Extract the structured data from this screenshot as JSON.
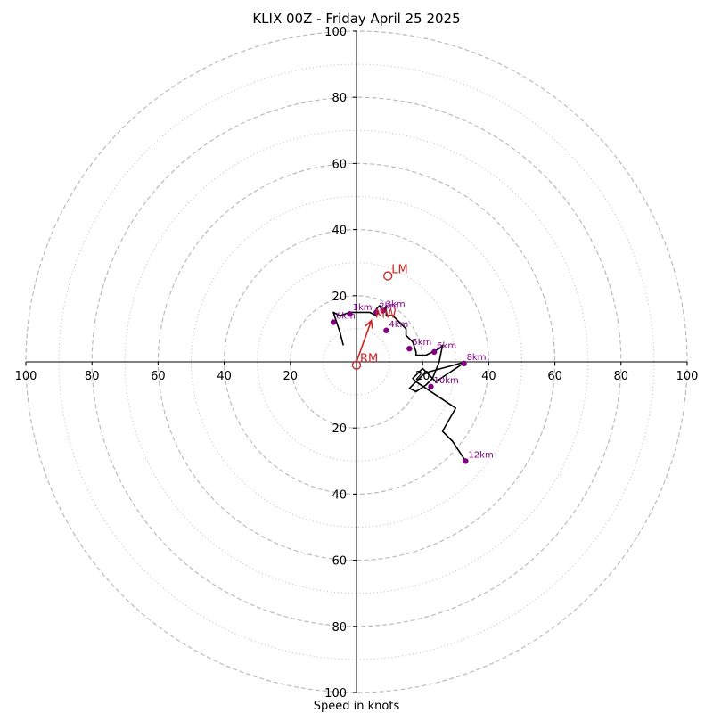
{
  "chart_data": {
    "type": "scatter",
    "title": "KLIX 00Z - Friday April 25 2025",
    "xlabel": "Speed in knots",
    "ylabel": "",
    "xlim": [
      -100,
      100
    ],
    "ylim": [
      -100,
      100
    ],
    "grid": true,
    "rings_major": [
      20,
      40,
      60,
      80,
      100
    ],
    "rings_minor": [
      10,
      30,
      50,
      70,
      90
    ],
    "x_tick_labels": [
      "100",
      "80",
      "60",
      "40",
      "20",
      "20",
      "40",
      "60",
      "80",
      "100"
    ],
    "x_tick_values": [
      -100,
      -80,
      -60,
      -40,
      -20,
      20,
      40,
      60,
      80,
      100
    ],
    "y_tick_labels": [
      "100",
      "80",
      "60",
      "40",
      "20",
      "20",
      "40",
      "60",
      "80",
      "100"
    ],
    "y_tick_values": [
      100,
      80,
      60,
      40,
      20,
      -20,
      -40,
      -60,
      -80,
      -100
    ],
    "colors": {
      "trace": "#000000",
      "height_marker": "#800080",
      "motion": "#cc2222",
      "grid": "#bbbbbb"
    },
    "hodograph_trace": [
      [
        -4,
        5
      ],
      [
        -5,
        9
      ],
      [
        -7,
        15
      ],
      [
        -5,
        14
      ],
      [
        -2,
        15
      ],
      [
        4,
        15
      ],
      [
        6,
        14
      ],
      [
        6,
        16
      ],
      [
        7,
        17
      ],
      [
        8,
        15
      ],
      [
        9,
        17
      ],
      [
        9,
        14
      ],
      [
        11,
        14
      ],
      [
        13,
        12
      ],
      [
        15,
        10
      ],
      [
        15,
        8
      ],
      [
        17,
        6
      ],
      [
        18,
        3
      ],
      [
        18,
        2
      ],
      [
        21,
        2
      ],
      [
        23,
        3
      ],
      [
        25,
        4
      ],
      [
        26,
        5
      ],
      [
        25,
        0
      ],
      [
        23,
        -5
      ],
      [
        21,
        -7
      ],
      [
        18,
        -9
      ],
      [
        16,
        -8
      ],
      [
        18,
        -6
      ],
      [
        17,
        -5
      ],
      [
        20,
        -2
      ],
      [
        22,
        -4
      ],
      [
        24,
        -6
      ],
      [
        33,
        0
      ],
      [
        22,
        -3
      ],
      [
        20,
        -4
      ],
      [
        18,
        -6
      ],
      [
        30,
        -14
      ],
      [
        26,
        -21
      ],
      [
        29,
        -24
      ],
      [
        33,
        -30
      ]
    ],
    "height_markers": [
      {
        "label": "1km",
        "x": -2,
        "y": 14.5
      },
      {
        "label": "2km",
        "x": 6,
        "y": 15
      },
      {
        "label": "3km",
        "x": 8,
        "y": 15.5
      },
      {
        "label": "4km",
        "x": 9,
        "y": 9.5
      },
      {
        "label": "5km",
        "x": 16,
        "y": 4
      },
      {
        "label": "6km",
        "x": 23.5,
        "y": 3
      },
      {
        "label": "8km",
        "x": 32.5,
        "y": -0.5
      },
      {
        "label": "10km",
        "x": 22.5,
        "y": -7.5
      },
      {
        "label": "12km",
        "x": 33,
        "y": -30
      },
      {
        "label": "6km",
        "x": -7,
        "y": 12
      }
    ],
    "storm_motion": [
      {
        "label": "LM",
        "x": 9.5,
        "y": 26
      },
      {
        "label": "RM",
        "x": 0,
        "y": -1
      },
      {
        "label": "MW",
        "x": 4.5,
        "y": 12.5
      }
    ],
    "shear_vector": {
      "from": [
        0,
        0
      ],
      "to": [
        4.5,
        12.5
      ]
    }
  }
}
